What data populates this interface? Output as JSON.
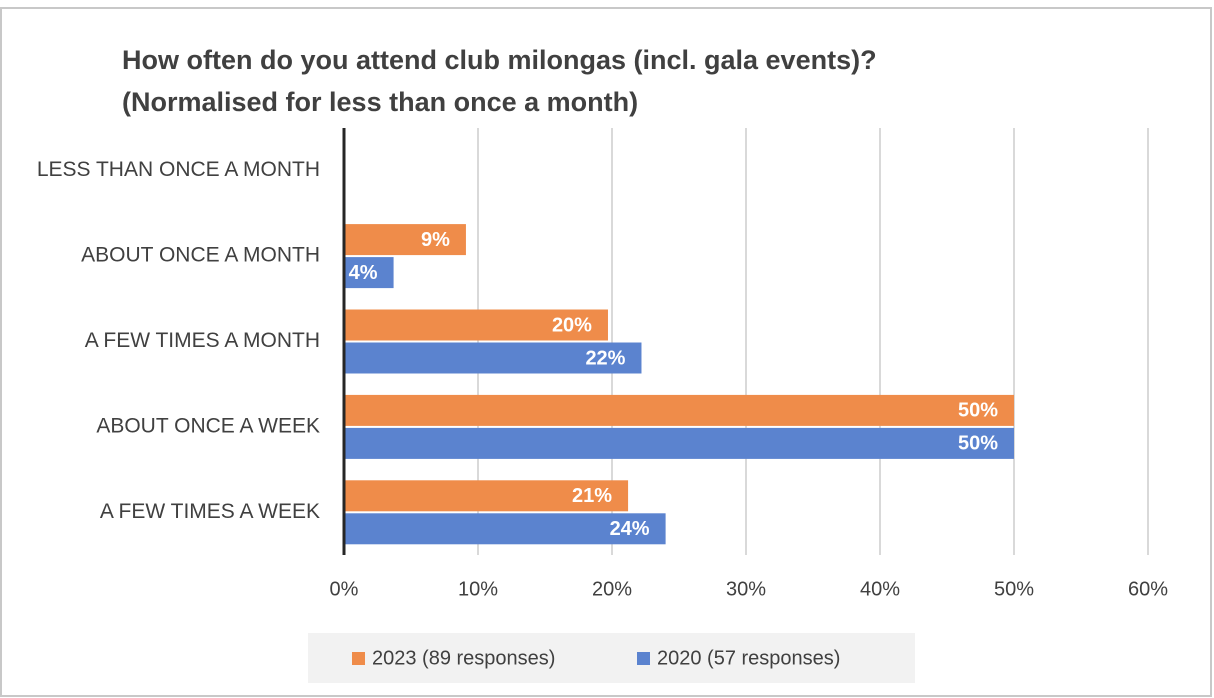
{
  "chart_data": {
    "type": "bar",
    "orientation": "horizontal",
    "title": [
      "How often do you attend club milongas (incl. gala events)?",
      "(Normalised for less than once a month)"
    ],
    "categories": [
      "LESS THAN ONCE A MONTH",
      "ABOUT ONCE A MONTH",
      "A FEW TIMES A MONTH",
      "ABOUT ONCE A WEEK",
      "A FEW TIMES A WEEK"
    ],
    "series": [
      {
        "name": "2023 (89 responses)",
        "color": "#ef8c4a",
        "values": [
          null,
          9.1,
          19.7,
          50,
          21.2
        ],
        "value_labels": [
          null,
          "9%",
          "20%",
          "50%",
          "21%"
        ]
      },
      {
        "name": "2020 (57 responses)",
        "color": "#5b83cf",
        "values": [
          null,
          3.7,
          22.2,
          50,
          24
        ],
        "value_labels": [
          null,
          "4%",
          "22%",
          "50%",
          "24%"
        ]
      }
    ],
    "xlim": [
      0,
      60
    ],
    "xticks": [
      {
        "value": 0,
        "label": "0%"
      },
      {
        "value": 10,
        "label": "10%"
      },
      {
        "value": 20,
        "label": "20%"
      },
      {
        "value": 30,
        "label": "30%"
      },
      {
        "value": 40,
        "label": "40%"
      },
      {
        "value": 50,
        "label": "50%"
      },
      {
        "value": 60,
        "label": "60%"
      }
    ],
    "grid": true,
    "legend": "bottom"
  }
}
